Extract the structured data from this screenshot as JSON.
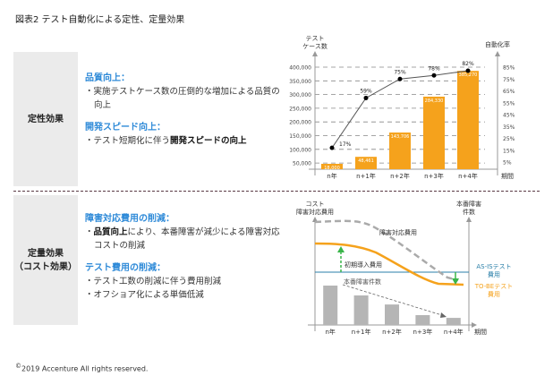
{
  "title": "図表2 テスト自動化による定性、定量効果",
  "qualitative": {
    "label": "定性効果",
    "sections": [
      {
        "heading": "品質向上：",
        "items": [
          [
            "・実施テストケース数の圧倒的な増加による品質の向上"
          ]
        ]
      },
      {
        "heading": "開発スピード向上：",
        "items": [
          [
            "・テスト短期化に伴う",
            "開発スピードの向上"
          ]
        ]
      }
    ]
  },
  "quantitative": {
    "label_line1": "定量効果",
    "label_line2": "（コスト効果）",
    "sections": [
      {
        "heading": "障害対応費用の削減：",
        "items": [
          [
            "・",
            "品質向上",
            "により、本番障害が減少による障害対応コストの削減"
          ]
        ]
      },
      {
        "heading": "テスト費用の削減：",
        "items": [
          [
            "・テスト工数の削減に伴う費用削減"
          ],
          [
            "・オフショア化による単価低減"
          ]
        ]
      }
    ]
  },
  "colors": {
    "bar": "#f5a21c",
    "heading": "#2e8ad8",
    "line": "#555555",
    "grid": "#888888",
    "asis": "#2a7fa8",
    "tobe": "#f5a21c",
    "arrow_green": "#3ab54a",
    "incident_bar": "#b5b5b5",
    "side_box": "#ebebeb"
  },
  "chart_data": [
    {
      "type": "bar",
      "title": "",
      "categories": [
        "n年",
        "n+1年",
        "n+2年",
        "n+3年",
        "n+4年"
      ],
      "series": [
        {
          "name": "テストケース数",
          "axis": "left",
          "kind": "bar",
          "values": [
            18000,
            48461,
            143706,
            284330,
            385270
          ],
          "labels": [
            "18,000",
            "48,461",
            "143,706",
            "284,330",
            "385,270"
          ]
        },
        {
          "name": "自動化率",
          "axis": "right",
          "kind": "line",
          "values": [
            17,
            59,
            75,
            78,
            82
          ],
          "labels": [
            "17%",
            "59%",
            "75%",
            "78%",
            "82%"
          ]
        }
      ],
      "ylabel_left": "テスト ケース数",
      "ylabel_left_lines": [
        "テスト",
        "ケース数"
      ],
      "ylabel_right": "自動化率",
      "xlabel": "期間",
      "yticks_left": [
        "400,000",
        "350,000",
        "300,000",
        "250,000",
        "200,000",
        "150,000",
        "100,000",
        "50,000"
      ],
      "yticks_left_values": [
        400000,
        350000,
        300000,
        250000,
        200000,
        150000,
        100000,
        50000
      ],
      "yticks_right": [
        "85%",
        "75%",
        "65%",
        "55%",
        "45%",
        "35%",
        "25%",
        "15%",
        "5%"
      ],
      "yticks_right_values": [
        85,
        75,
        65,
        55,
        45,
        35,
        25,
        15,
        5
      ],
      "ylim_left": [
        0,
        400000
      ],
      "ylim_right": [
        0,
        85
      ],
      "grid": true
    },
    {
      "type": "bar",
      "title": "",
      "categories": [
        "n年",
        "n+1年",
        "n+2年",
        "n+3年",
        "n+4年"
      ],
      "series": [
        {
          "name": "本番障害件数",
          "kind": "bar",
          "values": [
            100,
            75,
            52,
            25,
            18
          ]
        }
      ],
      "ylabel_left_lines": [
        "コスト",
        "障害対応費用"
      ],
      "ylabel_right_lines": [
        "本番障害",
        "件数"
      ],
      "xlabel": "期間",
      "annotations": {
        "incident_cost": "障害対応費用",
        "initial_cost": "初期導入費用",
        "incident_count": "本番障害件数",
        "asis_lines": [
          "AS-ISテスト",
          "費用"
        ],
        "tobe_lines": [
          "TO-BEテスト",
          "費用"
        ]
      },
      "note": "conceptual chart: values are relative (unitless)"
    }
  ],
  "copyright_mark": "©",
  "copyright": "2019 Accenture All rights reserved."
}
